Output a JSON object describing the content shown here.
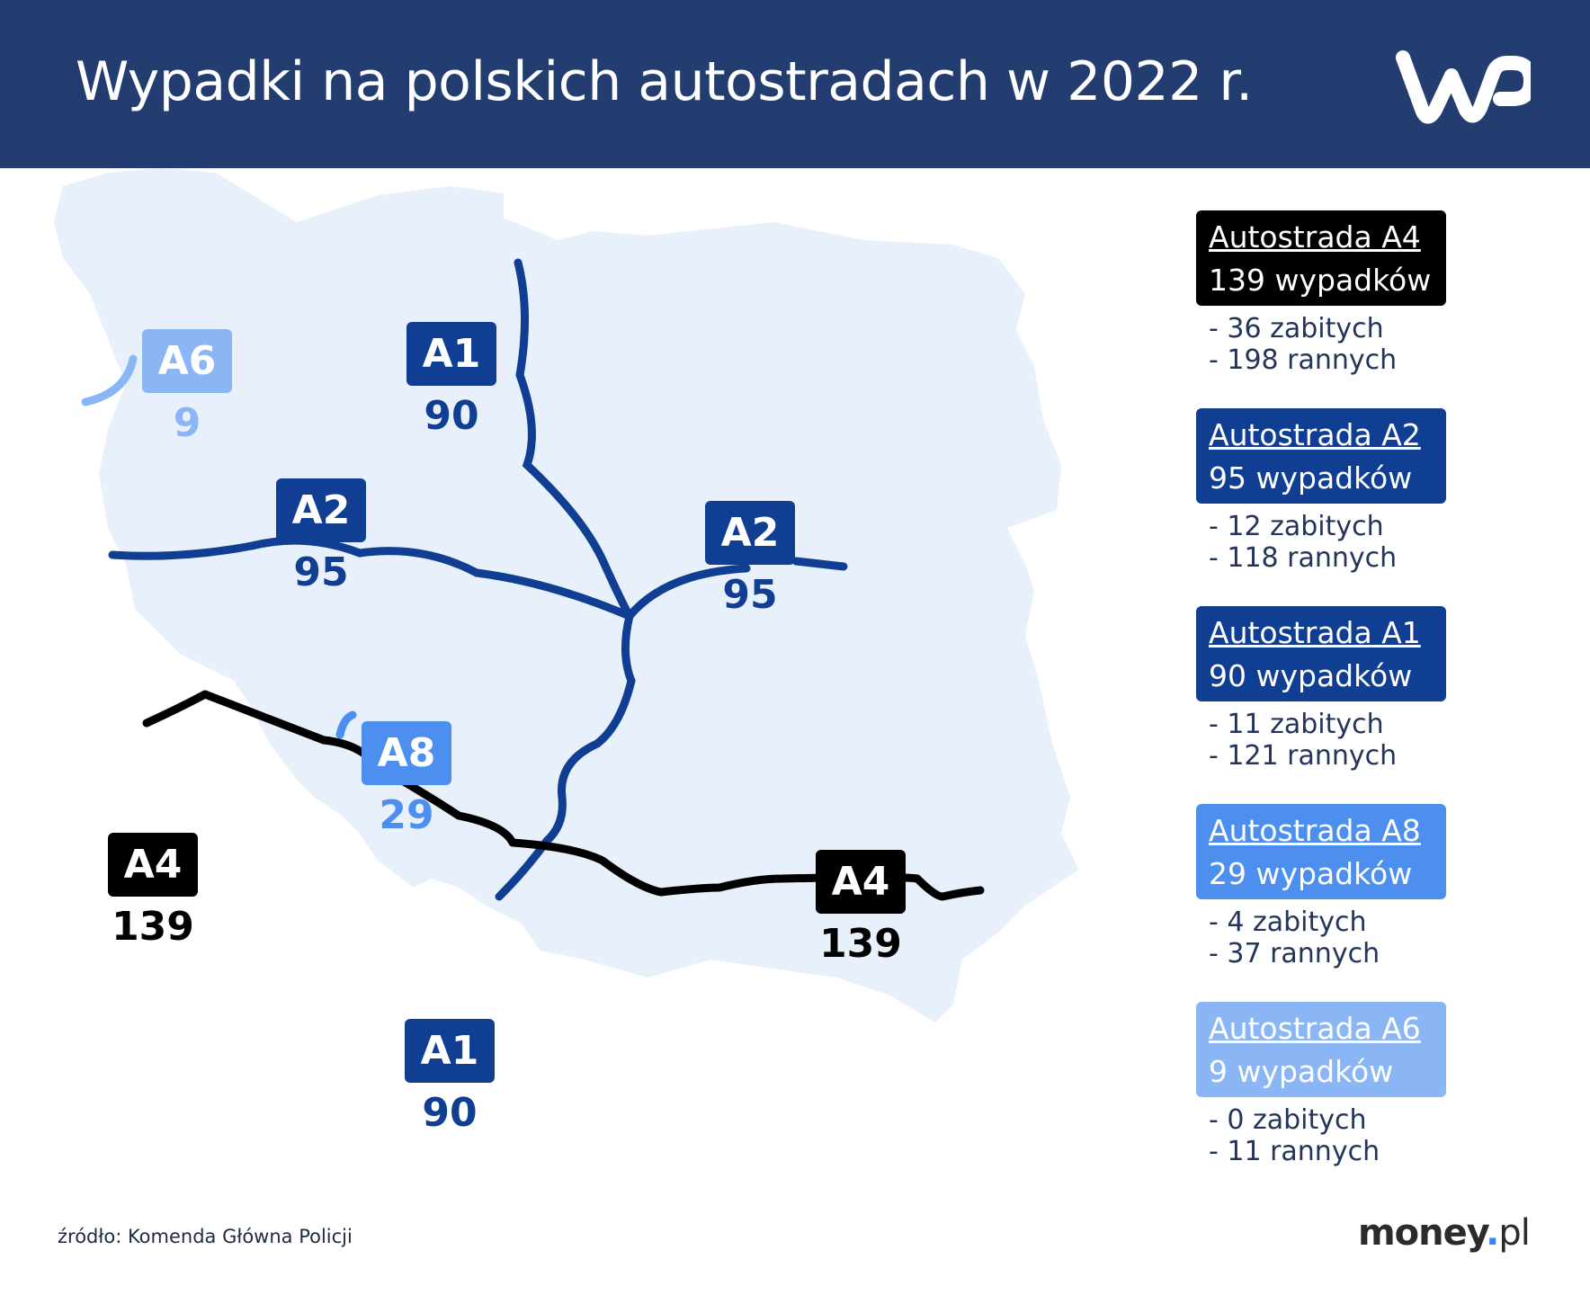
{
  "header": {
    "title": "Wypadki na polskich autostradach w 2022 r.",
    "logo_text": "WP"
  },
  "colors": {
    "header_bg": "#233d71",
    "map_fill": "#e8f0fb",
    "A4": "#000000",
    "A2": "#0f3e92",
    "A1": "#0f3e92",
    "A8": "#4c8fef",
    "A6": "#8ab6f5"
  },
  "map": {
    "markers": [
      {
        "road": "A6",
        "count": "9"
      },
      {
        "road": "A1",
        "count": "90"
      },
      {
        "road": "A2",
        "count": "95"
      },
      {
        "road": "A2",
        "count": "95"
      },
      {
        "road": "A8",
        "count": "29"
      },
      {
        "road": "A4",
        "count": "139"
      },
      {
        "road": "A4",
        "count": "139"
      },
      {
        "road": "A1",
        "count": "90"
      }
    ]
  },
  "legend": [
    {
      "name": "Autostrada A4",
      "accidents": "139 wypadków",
      "killed": "- 36 zabitych",
      "injured": "- 198 rannych"
    },
    {
      "name": "Autostrada A2",
      "accidents": "95 wypadków",
      "killed": "- 12 zabitych",
      "injured": "- 118 rannych"
    },
    {
      "name": "Autostrada A1",
      "accidents": "90 wypadków",
      "killed": "- 11 zabitych",
      "injured": "- 121 rannych"
    },
    {
      "name": "Autostrada A8",
      "accidents": "29 wypadków",
      "killed": "- 4 zabitych",
      "injured": "- 37 rannych"
    },
    {
      "name": "Autostrada A6",
      "accidents": "9 wypadków",
      "killed": "- 0 zabitych",
      "injured": "- 11 rannych"
    }
  ],
  "footer": {
    "source": "źródło: Komenda Główna Policji",
    "brand_main": "money",
    "brand_dot": ".",
    "brand_tld": "pl"
  }
}
